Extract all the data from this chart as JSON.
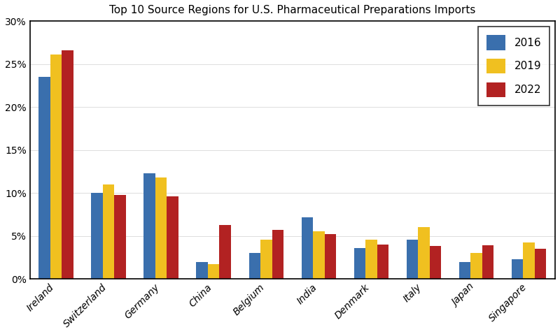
{
  "title": "Top 10 Source Regions for U.S. Pharmaceutical Preparations Imports",
  "categories": [
    "Ireland",
    "Switzerland",
    "Germany",
    "China",
    "Belgium",
    "India",
    "Denmark",
    "Italy",
    "Japan",
    "Singapore"
  ],
  "series": {
    "2016": [
      23.5,
      10.0,
      12.3,
      2.0,
      3.0,
      7.2,
      3.6,
      4.6,
      2.0,
      2.3
    ],
    "2019": [
      26.1,
      11.0,
      11.8,
      1.7,
      4.6,
      5.5,
      4.6,
      6.0,
      3.0,
      4.2
    ],
    "2022": [
      26.6,
      9.8,
      9.6,
      6.3,
      5.7,
      5.2,
      4.0,
      3.8,
      3.9,
      3.5
    ]
  },
  "colors": {
    "2016": "#3a6fad",
    "2019": "#f0c020",
    "2022": "#b22222"
  },
  "ylim": [
    0,
    30
  ],
  "yticks": [
    0,
    5,
    10,
    15,
    20,
    25,
    30
  ],
  "legend_labels": [
    "2016",
    "2019",
    "2022"
  ],
  "background_color": "#ffffff",
  "bar_width": 0.22,
  "figsize": [
    8.0,
    4.78
  ],
  "dpi": 100
}
